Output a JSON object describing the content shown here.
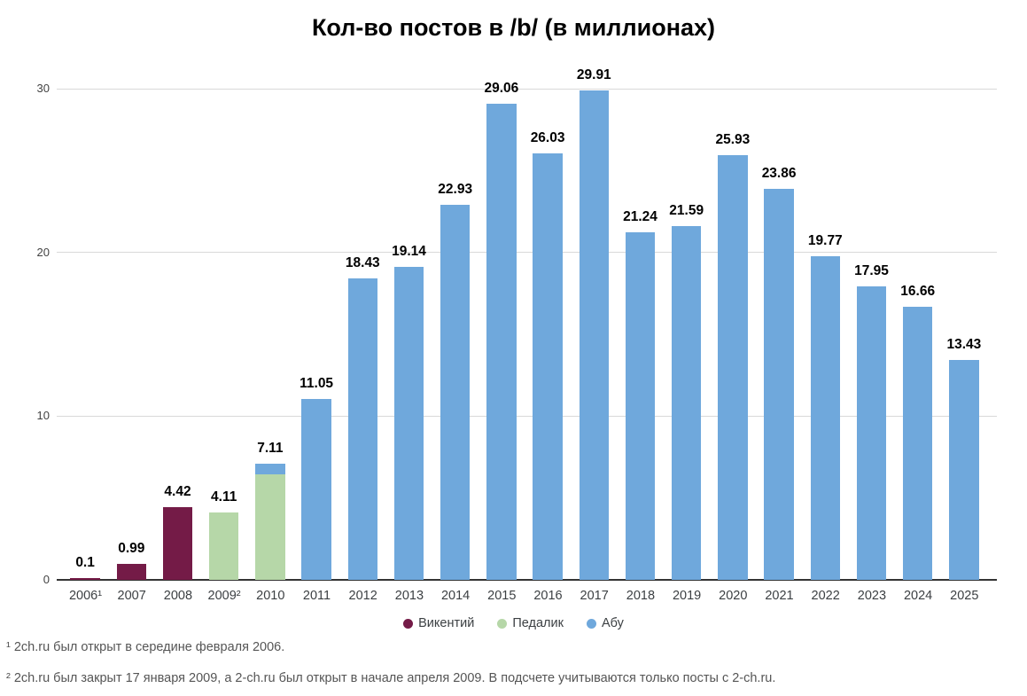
{
  "chart_data": {
    "type": "bar",
    "stacked": true,
    "title": "Кол-во постов в /b/ (в миллионах)",
    "categories": [
      "2006¹",
      "2007",
      "2008",
      "2009²",
      "2010",
      "2011",
      "2012",
      "2013",
      "2014",
      "2015",
      "2016",
      "2017",
      "2018",
      "2019",
      "2020",
      "2021",
      "2022",
      "2023",
      "2024",
      "2025"
    ],
    "labels": [
      "0.1",
      "0.99",
      "4.42",
      "4.11",
      "7.11",
      "11.05",
      "18.43",
      "19.14",
      "22.93",
      "29.06",
      "26.03",
      "29.91",
      "21.24",
      "21.59",
      "25.93",
      "23.86",
      "19.77",
      "17.95",
      "16.66",
      "13.43"
    ],
    "series": [
      {
        "name": "Викентий",
        "color": "#741b47",
        "values": [
          0.1,
          0.99,
          4.42,
          0,
          0,
          0,
          0,
          0,
          0,
          0,
          0,
          0,
          0,
          0,
          0,
          0,
          0,
          0,
          0,
          0
        ]
      },
      {
        "name": "Педалик",
        "color": "#b6d7a8",
        "values": [
          0,
          0,
          0,
          4.11,
          6.45,
          0,
          0,
          0,
          0,
          0,
          0,
          0,
          0,
          0,
          0,
          0,
          0,
          0,
          0,
          0
        ]
      },
      {
        "name": "Абу",
        "color": "#6fa8dc",
        "values": [
          0,
          0,
          0,
          0,
          0.66,
          11.05,
          18.43,
          19.14,
          22.93,
          29.06,
          26.03,
          29.91,
          21.24,
          21.59,
          25.93,
          23.86,
          19.77,
          17.95,
          16.66,
          13.43
        ]
      }
    ],
    "xlabel": "",
    "ylabel": "",
    "ylim": [
      0,
      30
    ],
    "yticks": [
      0,
      10,
      20,
      30
    ],
    "grid": true,
    "legend_position": "bottom"
  },
  "footnotes": [
    "¹ 2ch.ru был открыт в середине февраля 2006.",
    "² 2ch.ru был закрыт 17 января 2009, а 2-ch.ru был открыт в начале апреля 2009. В подсчете учитываются только посты с 2-ch.ru."
  ]
}
